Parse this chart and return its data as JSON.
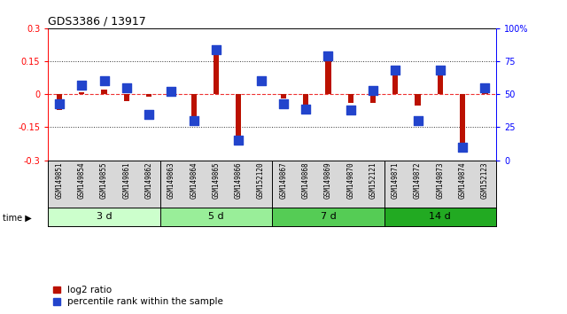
{
  "title": "GDS3386 / 13917",
  "samples": [
    "GSM149851",
    "GSM149854",
    "GSM149855",
    "GSM149861",
    "GSM149862",
    "GSM149863",
    "GSM149864",
    "GSM149865",
    "GSM149866",
    "GSM152120",
    "GSM149867",
    "GSM149868",
    "GSM149869",
    "GSM149870",
    "GSM152121",
    "GSM149871",
    "GSM149872",
    "GSM149873",
    "GSM149874",
    "GSM152123"
  ],
  "log2_ratio": [
    -0.07,
    0.01,
    0.02,
    -0.03,
    -0.01,
    0.01,
    -0.1,
    0.18,
    -0.22,
    0.0,
    -0.02,
    -0.05,
    0.16,
    -0.04,
    -0.04,
    0.12,
    -0.05,
    0.09,
    -0.22,
    0.01
  ],
  "percentile": [
    43,
    57,
    60,
    55,
    35,
    52,
    30,
    84,
    15,
    60,
    43,
    39,
    79,
    38,
    53,
    68,
    30,
    68,
    10,
    55
  ],
  "groups": [
    {
      "label": "3 d",
      "start": 0,
      "end": 5
    },
    {
      "label": "5 d",
      "start": 5,
      "end": 10
    },
    {
      "label": "7 d",
      "start": 10,
      "end": 15
    },
    {
      "label": "14 d",
      "start": 15,
      "end": 20
    }
  ],
  "group_colors": [
    "#ccffcc",
    "#99ee99",
    "#55cc55",
    "#22aa22"
  ],
  "ylim_left": [
    -0.3,
    0.3
  ],
  "ylim_right": [
    0,
    100
  ],
  "yticks_left": [
    -0.3,
    -0.15,
    0,
    0.15,
    0.3
  ],
  "yticks_right": [
    0,
    25,
    50,
    75,
    100
  ],
  "bar_color_red": "#bb1100",
  "marker_color_blue": "#2244cc",
  "zero_line_color": "#ee3333",
  "dotted_line_color": "#333333",
  "background_color": "#ffffff",
  "bar_width": 0.25,
  "marker_size": 55
}
